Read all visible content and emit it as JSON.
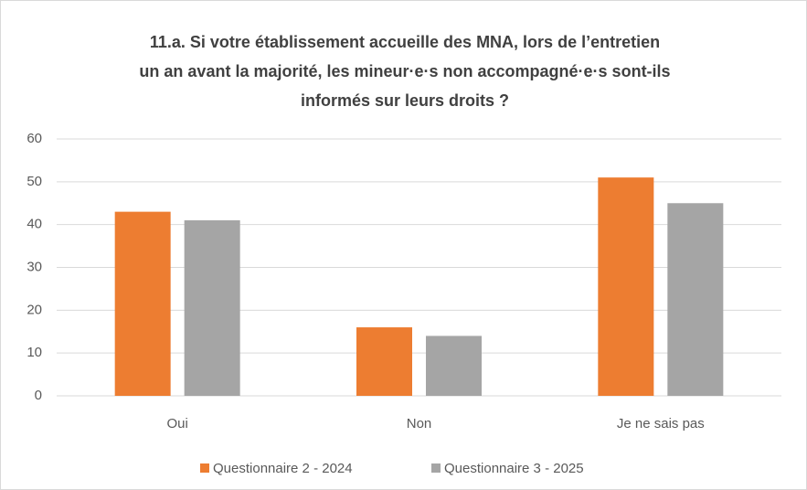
{
  "chart_data": {
    "type": "bar",
    "title": [
      "11.a. Si votre établissement accueille des MNA, lors de l’entretien",
      "un an avant la majorité, les mineur·e·s non accompagné·e·s sont-ils",
      "informés sur leurs droits ?"
    ],
    "categories": [
      "Oui",
      "Non",
      "Je ne sais pas"
    ],
    "series": [
      {
        "name": "Questionnaire 2 - 2024",
        "color": "#ed7d31",
        "values": [
          43,
          16,
          51
        ]
      },
      {
        "name": "Questionnaire 3 - 2025",
        "color": "#a5a5a5",
        "values": [
          41,
          14,
          45
        ]
      }
    ],
    "ylim": [
      0,
      60
    ],
    "yticks": [
      0,
      10,
      20,
      30,
      40,
      50,
      60
    ],
    "grid": true,
    "legend": "bottom"
  }
}
